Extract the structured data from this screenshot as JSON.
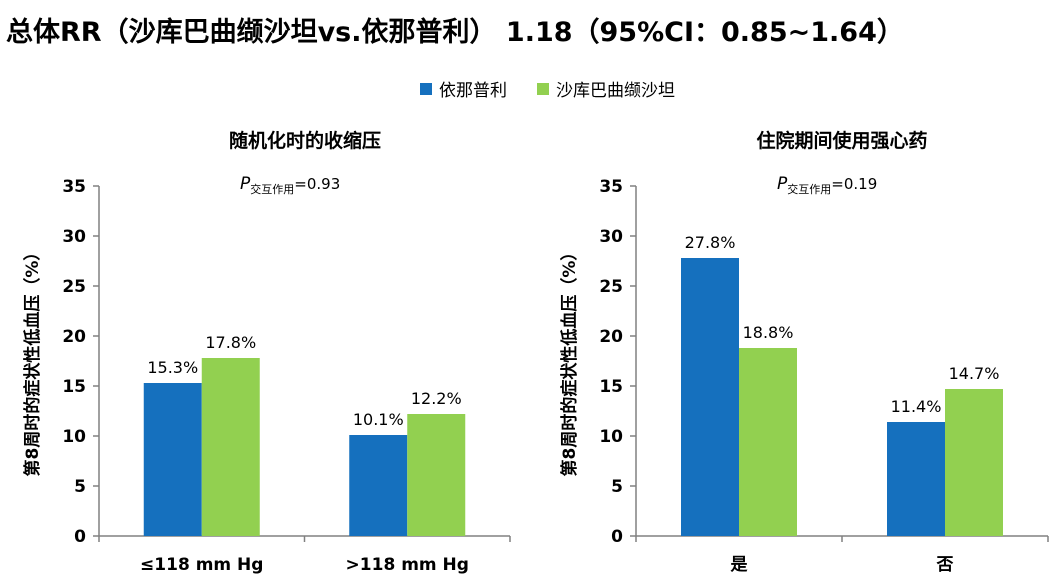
{
  "title": "总体RR（沙库巴曲缬沙坦vs.依那普利） 1.18（95%CI：0.85~1.64）",
  "legend": [
    {
      "name": "依那普利",
      "color": "#1570be"
    },
    {
      "name": "沙库巴曲缬沙坦",
      "color": "#92d050"
    }
  ],
  "chart_data": [
    {
      "type": "bar",
      "title": "随机化时的收缩压",
      "ylabel": "第8周时的症状性低血压（%）",
      "ylim": [
        0,
        35
      ],
      "yticks": [
        0,
        5,
        10,
        15,
        20,
        25,
        30,
        35
      ],
      "categories": [
        "≤118 mm Hg",
        ">118 mm Hg"
      ],
      "series": [
        {
          "name": "依那普利",
          "values": [
            15.3,
            10.1
          ],
          "labels": [
            "15.3%",
            "10.1%"
          ]
        },
        {
          "name": "沙库巴曲缬沙坦",
          "values": [
            17.8,
            12.2
          ],
          "labels": [
            "17.8%",
            "12.2%"
          ]
        }
      ],
      "p_prefix": "P",
      "p_sub": "交互作用",
      "p_value": "=0.93"
    },
    {
      "type": "bar",
      "title": "住院期间使用强心药",
      "ylabel": "第8周时的症状性低血压（%）",
      "ylim": [
        0,
        35
      ],
      "yticks": [
        0,
        5,
        10,
        15,
        20,
        25,
        30,
        35
      ],
      "categories": [
        "是",
        "否"
      ],
      "series": [
        {
          "name": "依那普利",
          "values": [
            27.8,
            11.4
          ],
          "labels": [
            "27.8%",
            "11.4%"
          ]
        },
        {
          "name": "沙库巴曲缬沙坦",
          "values": [
            18.8,
            14.7
          ],
          "labels": [
            "18.8%",
            "14.7%"
          ]
        }
      ],
      "p_prefix": "P",
      "p_sub": "交互作用",
      "p_value": "=0.19"
    }
  ]
}
